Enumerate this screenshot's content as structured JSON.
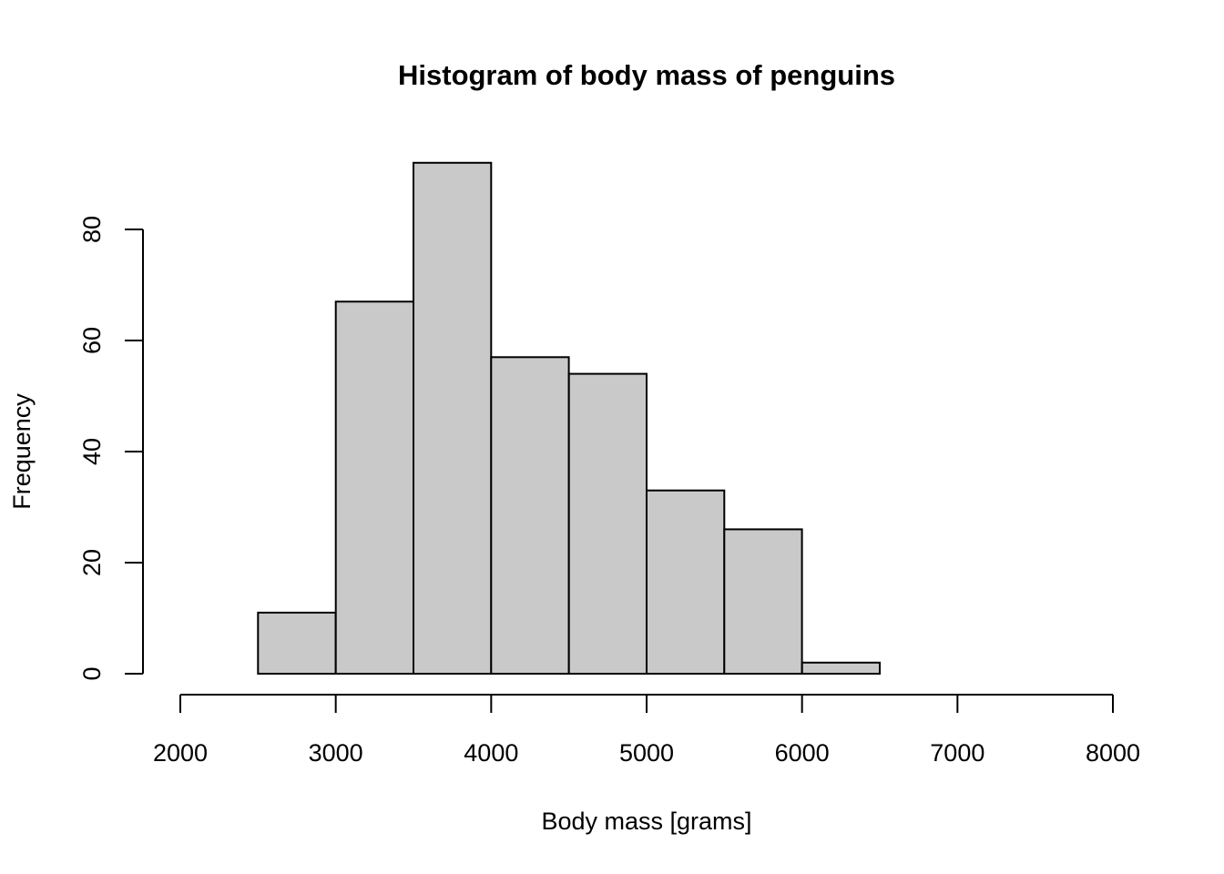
{
  "chart_data": {
    "type": "bar",
    "subtype": "histogram",
    "title": "Histogram of body mass of penguins",
    "xlabel": "Body mass [grams]",
    "ylabel": "Frequency",
    "bin_breaks": [
      2500,
      3000,
      3500,
      4000,
      4500,
      5000,
      5500,
      6000,
      6500
    ],
    "counts": [
      11,
      67,
      92,
      57,
      54,
      33,
      26,
      2
    ],
    "x_ticks": [
      2000,
      3000,
      4000,
      5000,
      6000,
      7000,
      8000
    ],
    "x_tick_labels": [
      "2000",
      "3000",
      "4000",
      "5000",
      "6000",
      "7000",
      "8000"
    ],
    "y_ticks": [
      0,
      20,
      40,
      60,
      80
    ],
    "y_tick_labels": [
      "0",
      "20",
      "40",
      "60",
      "80"
    ],
    "xlim": [
      2000,
      8000
    ],
    "ylim": [
      0,
      80
    ],
    "grid": "off",
    "legend": "none",
    "bar_fill_color": "#C9C9C9",
    "bar_stroke_color": "#000000",
    "axis_color": "#000000",
    "text_color": "#000000",
    "background_color": "#FFFFFF"
  }
}
